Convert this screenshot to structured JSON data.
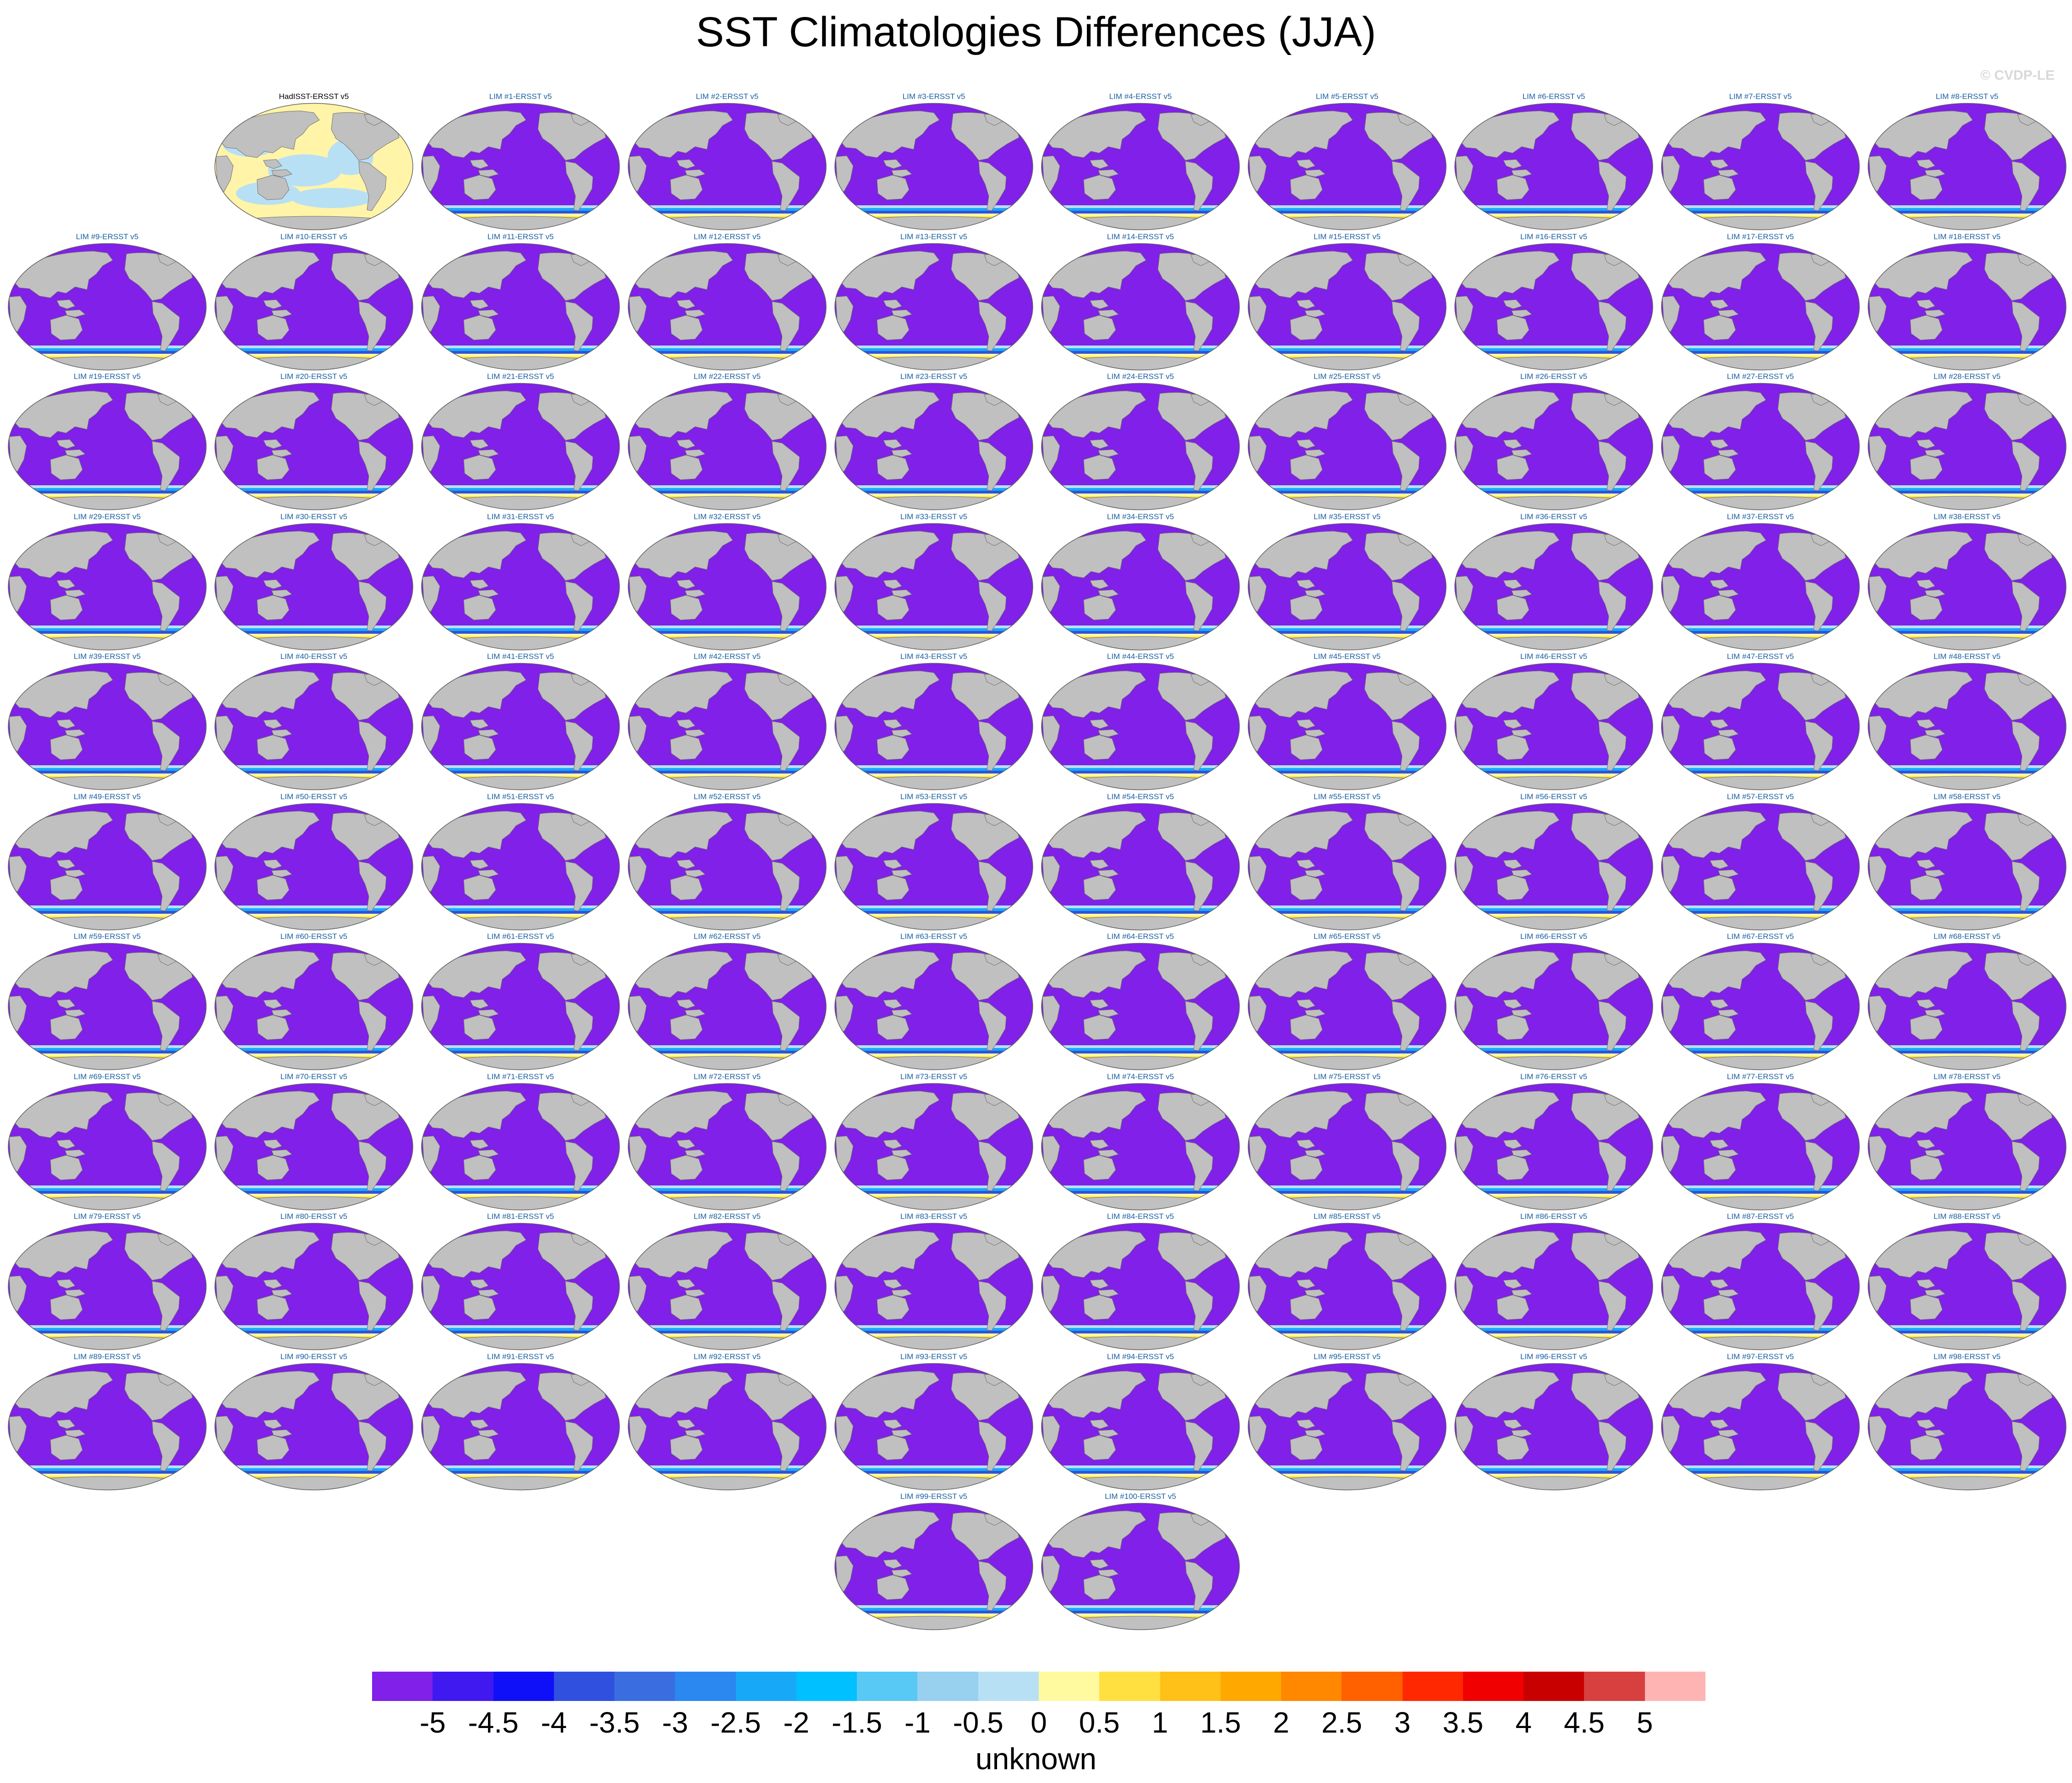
{
  "title": "SST Climatologies Differences (JJA)",
  "watermark": "© CVDP-LE",
  "units": "unknown",
  "colorbar": {
    "labels": [
      "-5",
      "-4.5",
      "-4",
      "-3.5",
      "-3",
      "-2.5",
      "-2",
      "-1.5",
      "-1",
      "-0.5",
      "0",
      "0.5",
      "1",
      "1.5",
      "2",
      "2.5",
      "3",
      "3.5",
      "4",
      "4.5",
      "5"
    ],
    "colors": [
      "#8020e8",
      "#4018f0",
      "#1010f8",
      "#3050e0",
      "#3a6ee0",
      "#2a88f0",
      "#18a8f8",
      "#00c0ff",
      "#58c8f4",
      "#98d0f0",
      "#b8e0f4",
      "#fffaa0",
      "#ffe040",
      "#ffc018",
      "#ffa800",
      "#ff8800",
      "#ff6000",
      "#ff2800",
      "#f00000",
      "#c80000",
      "#d84040",
      "#ffb4b4"
    ]
  },
  "colors": {
    "land": "#c0c0c0",
    "land_edge": "#707070",
    "ocean_default": "#8020e8",
    "panel_label": "#1a5fa0"
  },
  "reference_panel": {
    "label": "HadISST-ERSST v5",
    "style": "ref"
  },
  "panels_labels": [
    "LIM #1-ERSST v5",
    "LIM #2-ERSST v5",
    "LIM #3-ERSST v5",
    "LIM #4-ERSST v5",
    "LIM #5-ERSST v5",
    "LIM #6-ERSST v5",
    "LIM #7-ERSST v5",
    "LIM #8-ERSST v5",
    "LIM #9-ERSST v5",
    "LIM #10-ERSST v5",
    "LIM #11-ERSST v5",
    "LIM #12-ERSST v5",
    "LIM #13-ERSST v5",
    "LIM #14-ERSST v5",
    "LIM #15-ERSST v5",
    "LIM #16-ERSST v5",
    "LIM #17-ERSST v5",
    "LIM #18-ERSST v5",
    "LIM #19-ERSST v5",
    "LIM #20-ERSST v5",
    "LIM #21-ERSST v5",
    "LIM #22-ERSST v5",
    "LIM #23-ERSST v5",
    "LIM #24-ERSST v5",
    "LIM #25-ERSST v5",
    "LIM #26-ERSST v5",
    "LIM #27-ERSST v5",
    "LIM #28-ERSST v5",
    "LIM #29-ERSST v5",
    "LIM #30-ERSST v5",
    "LIM #31-ERSST v5",
    "LIM #32-ERSST v5",
    "LIM #33-ERSST v5",
    "LIM #34-ERSST v5",
    "LIM #35-ERSST v5",
    "LIM #36-ERSST v5",
    "LIM #37-ERSST v5",
    "LIM #38-ERSST v5",
    "LIM #39-ERSST v5",
    "LIM #40-ERSST v5",
    "LIM #41-ERSST v5",
    "LIM #42-ERSST v5",
    "LIM #43-ERSST v5",
    "LIM #44-ERSST v5",
    "LIM #45-ERSST v5",
    "LIM #46-ERSST v5",
    "LIM #47-ERSST v5",
    "LIM #48-ERSST v5",
    "LIM #49-ERSST v5",
    "LIM #50-ERSST v5",
    "LIM #51-ERSST v5",
    "LIM #52-ERSST v5",
    "LIM #53-ERSST v5",
    "LIM #54-ERSST v5",
    "LIM #55-ERSST v5",
    "LIM #56-ERSST v5",
    "LIM #57-ERSST v5",
    "LIM #58-ERSST v5",
    "LIM #59-ERSST v5",
    "LIM #60-ERSST v5",
    "LIM #61-ERSST v5",
    "LIM #62-ERSST v5",
    "LIM #63-ERSST v5",
    "LIM #64-ERSST v5",
    "LIM #65-ERSST v5",
    "LIM #66-ERSST v5",
    "LIM #67-ERSST v5",
    "LIM #68-ERSST v5",
    "LIM #69-ERSST v5",
    "LIM #70-ERSST v5",
    "LIM #71-ERSST v5",
    "LIM #72-ERSST v5",
    "LIM #73-ERSST v5",
    "LIM #74-ERSST v5",
    "LIM #75-ERSST v5",
    "LIM #76-ERSST v5",
    "LIM #77-ERSST v5",
    "LIM #78-ERSST v5",
    "LIM #79-ERSST v5",
    "LIM #80-ERSST v5",
    "LIM #81-ERSST v5",
    "LIM #82-ERSST v5",
    "LIM #83-ERSST v5",
    "LIM #84-ERSST v5",
    "LIM #85-ERSST v5",
    "LIM #86-ERSST v5",
    "LIM #87-ERSST v5",
    "LIM #88-ERSST v5",
    "LIM #89-ERSST v5",
    "LIM #90-ERSST v5",
    "LIM #91-ERSST v5",
    "LIM #92-ERSST v5",
    "LIM #93-ERSST v5",
    "LIM #94-ERSST v5",
    "LIM #95-ERSST v5",
    "LIM #96-ERSST v5",
    "LIM #97-ERSST v5",
    "LIM #98-ERSST v5",
    "LIM #99-ERSST v5",
    "LIM #100-ERSST v5"
  ]
}
